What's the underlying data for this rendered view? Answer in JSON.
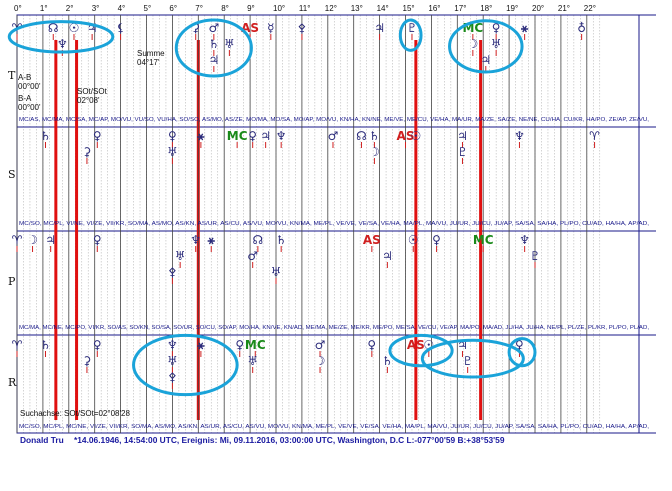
{
  "degree_labels": [
    "0°",
    "1°",
    "2°",
    "3°",
    "4°",
    "5°",
    "6°",
    "7°",
    "8°",
    "9°",
    "10°",
    "11°",
    "12°",
    "13°",
    "14°",
    "15°",
    "16°",
    "17°",
    "18°",
    "19°",
    "20°",
    "21°",
    "22°"
  ],
  "section_labels": [
    "T",
    "S",
    "P",
    "R"
  ],
  "notes": {
    "summe_label": "Summe",
    "summe_value": "04°17'",
    "ab_label": "A-B",
    "ab_value": "00°00'",
    "ba_label": "B-A",
    "ba_value": "00°00'",
    "sot_label": "SOt/SOt",
    "sot_value": "02°08'",
    "suchachse": "Suchachse: SOt/SOt=02°08'28"
  },
  "midpoint_rows": [
    "MC/AS, MC/MA, MC/SA, MC/AP, MO/VU, VU/SO, VU/HA, SO/SO, AS/MO, AS/ZE, MO/MA, MO/SA, MO/AP, MO/VU, KN/HA, KN/NE, ME/VE, ME/CU, VE/HA, MA/UR, MA/ZE, SA/ZE, NE/NE, CU/HA, CU/KR, HA/PO, ZE/AP, ZE/VU,",
    "MC/SO, MC/PL, VI/NE, VI/ZE, VII/KR, SO/MA, AS/MO, AS/KN, AS/UR, AS/CU, AS/VU, MO/VU, KN/MA, ME/PL, VE/VE, VE/SA, VE/HA, MA/PL, MA/VU, JU/UR, JU/CU, JU/AP, SA/SA, SA/HA, PL/PO, CU/AD, HA/HA, AP/AD,",
    "MC/MA, MC/NE, MC/PO, VI/KR, SO/AS, SO/KN, SO/SA, SO/UR, SO/CU, SO/AP, MO/HA, KN/VE, KN/AD, ME/MA, ME/ZE, ME/KR, ME/PO, ME/SA, VE/CU, VE/AP, MA/PO, MA/AD, JU/HA, JU/HA, NE/PL, PL/ZE, PL/KR, PL/PO, PL/AD,",
    "MC/SO, MC/PL, MC/NE, VI/ZE, VII/KR, SO/MA, AS/MO, AS/KN, AS/UR, AS/CU, AS/VU, MO/VU, KN/MA, ME/PL, VE/VE, VE/SA, VE/HA, MA/PL, MA/VU, JU/UR, JU/CU, JU/AP, SA/SA, SA/HA, PL/PO, CU/AD, HA/HA, AP/AD,"
  ],
  "footer": {
    "name": "Donald Tru",
    "text": "*14.06.1946, 14:54:00 UTC, Ereignis: Mi, 09.11.2016, 03:00:00 UTC, Washington, D.C L:-077°00'59 B:+38°53'59"
  },
  "colors": {
    "symbol_default": "#2a2a7a",
    "ascendant": "#d02020",
    "midheaven": "#1a8a1a",
    "search_axis": "#e01010",
    "highlight_circle": "#1aa3d9",
    "frame": "#1a1a8a"
  },
  "symbols": [
    {
      "row": "T",
      "g": "♈",
      "deg": 0.0,
      "lv": 0
    },
    {
      "row": "T",
      "g": "☊",
      "deg": 1.4,
      "lv": 0
    },
    {
      "row": "T",
      "g": "☉",
      "deg": 2.2,
      "lv": 0
    },
    {
      "row": "T",
      "g": "♆",
      "deg": 1.75,
      "lv": 1
    },
    {
      "row": "T",
      "g": "♃",
      "deg": 2.9,
      "lv": 0
    },
    {
      "row": "T",
      "g": "⚸",
      "deg": 4.0,
      "lv": 0
    },
    {
      "row": "T",
      "g": "⚳",
      "deg": 6.9,
      "lv": 0
    },
    {
      "row": "T",
      "g": "♂",
      "deg": 7.6,
      "lv": 0
    },
    {
      "row": "T",
      "g": "♄",
      "deg": 7.6,
      "lv": 1
    },
    {
      "row": "T",
      "g": "♅",
      "deg": 8.2,
      "lv": 1
    },
    {
      "row": "T",
      "g": "♃",
      "deg": 7.6,
      "lv": 2
    },
    {
      "row": "T",
      "g": "AS",
      "deg": 9.0,
      "lv": 0,
      "c": "ascendant"
    },
    {
      "row": "T",
      "g": "☿",
      "deg": 9.8,
      "lv": 0
    },
    {
      "row": "T",
      "g": "⚴",
      "deg": 11.0,
      "lv": 0
    },
    {
      "row": "T",
      "g": "♃",
      "deg": 14.0,
      "lv": 0
    },
    {
      "row": "T",
      "g": "♇",
      "deg": 15.25,
      "lv": 0
    },
    {
      "row": "T",
      "g": "MC",
      "deg": 17.6,
      "lv": 0,
      "c": "midheaven"
    },
    {
      "row": "T",
      "g": "♀",
      "deg": 18.5,
      "lv": 0
    },
    {
      "row": "T",
      "g": "☽",
      "deg": 17.6,
      "lv": 1
    },
    {
      "row": "T",
      "g": "♅",
      "deg": 18.5,
      "lv": 1
    },
    {
      "row": "T",
      "g": "♃",
      "deg": 18.1,
      "lv": 2
    },
    {
      "row": "T",
      "g": "⚹",
      "deg": 19.6,
      "lv": 0
    },
    {
      "row": "T",
      "g": "♁",
      "deg": 21.8,
      "lv": 0
    },
    {
      "row": "S",
      "g": "♄",
      "deg": 1.1,
      "lv": 0
    },
    {
      "row": "S",
      "g": "♀",
      "deg": 3.1,
      "lv": 0
    },
    {
      "row": "S",
      "g": "⚳",
      "deg": 2.7,
      "lv": 1
    },
    {
      "row": "S",
      "g": "♀",
      "deg": 6.0,
      "lv": 0
    },
    {
      "row": "S",
      "g": "♅",
      "deg": 6.0,
      "lv": 1
    },
    {
      "row": "S",
      "g": "⚹",
      "deg": 7.1,
      "lv": 0
    },
    {
      "row": "S",
      "g": "MC",
      "deg": 8.5,
      "lv": 0,
      "c": "midheaven"
    },
    {
      "row": "S",
      "g": "♀",
      "deg": 9.1,
      "lv": 0
    },
    {
      "row": "S",
      "g": "♃",
      "deg": 9.6,
      "lv": 0
    },
    {
      "row": "S",
      "g": "♆",
      "deg": 10.2,
      "lv": 0
    },
    {
      "row": "S",
      "g": "♂",
      "deg": 12.2,
      "lv": 0
    },
    {
      "row": "S",
      "g": "☊",
      "deg": 13.3,
      "lv": 0
    },
    {
      "row": "S",
      "g": "♄",
      "deg": 13.8,
      "lv": 0
    },
    {
      "row": "S",
      "g": "☽",
      "deg": 13.8,
      "lv": 1
    },
    {
      "row": "S",
      "g": "AS",
      "deg": 15.0,
      "lv": 0,
      "c": "ascendant"
    },
    {
      "row": "S",
      "g": "☉",
      "deg": 15.4,
      "lv": 0
    },
    {
      "row": "S",
      "g": "♃",
      "deg": 17.2,
      "lv": 0
    },
    {
      "row": "S",
      "g": "♇",
      "deg": 17.2,
      "lv": 1
    },
    {
      "row": "S",
      "g": "♆",
      "deg": 19.4,
      "lv": 0
    },
    {
      "row": "S",
      "g": "♈",
      "deg": 22.3,
      "lv": 0
    },
    {
      "row": "P",
      "g": "♈",
      "deg": 0.0,
      "lv": 0
    },
    {
      "row": "P",
      "g": "☽",
      "deg": 0.6,
      "lv": 0
    },
    {
      "row": "P",
      "g": "♃",
      "deg": 1.3,
      "lv": 0
    },
    {
      "row": "P",
      "g": "♀",
      "deg": 3.1,
      "lv": 0
    },
    {
      "row": "P",
      "g": "♆",
      "deg": 6.9,
      "lv": 0
    },
    {
      "row": "P",
      "g": "⚹",
      "deg": 7.5,
      "lv": 0
    },
    {
      "row": "P",
      "g": "♅",
      "deg": 6.3,
      "lv": 1
    },
    {
      "row": "P",
      "g": "⚴",
      "deg": 6.0,
      "lv": 2
    },
    {
      "row": "P",
      "g": "☊",
      "deg": 9.3,
      "lv": 0
    },
    {
      "row": "P",
      "g": "♄",
      "deg": 10.2,
      "lv": 0
    },
    {
      "row": "P",
      "g": "♂",
      "deg": 9.1,
      "lv": 1
    },
    {
      "row": "P",
      "g": "♅",
      "deg": 10.0,
      "lv": 2
    },
    {
      "row": "P",
      "g": "AS",
      "deg": 13.7,
      "lv": 0,
      "c": "ascendant"
    },
    {
      "row": "P",
      "g": "♃",
      "deg": 14.3,
      "lv": 1
    },
    {
      "row": "P",
      "g": "☉",
      "deg": 15.3,
      "lv": 0
    },
    {
      "row": "P",
      "g": "♀",
      "deg": 16.2,
      "lv": 0
    },
    {
      "row": "P",
      "g": "MC",
      "deg": 18.0,
      "lv": 0,
      "c": "midheaven"
    },
    {
      "row": "P",
      "g": "♆",
      "deg": 19.6,
      "lv": 0
    },
    {
      "row": "P",
      "g": "♇",
      "deg": 20.0,
      "lv": 1
    },
    {
      "row": "R",
      "g": "♈",
      "deg": 0.0,
      "lv": 0
    },
    {
      "row": "R",
      "g": "♄",
      "deg": 1.1,
      "lv": 0
    },
    {
      "row": "R",
      "g": "♀",
      "deg": 3.1,
      "lv": 0
    },
    {
      "row": "R",
      "g": "⚳",
      "deg": 2.7,
      "lv": 1
    },
    {
      "row": "R",
      "g": "♆",
      "deg": 6.0,
      "lv": 0
    },
    {
      "row": "R",
      "g": "♅",
      "deg": 6.0,
      "lv": 1
    },
    {
      "row": "R",
      "g": "⚴",
      "deg": 6.0,
      "lv": 2
    },
    {
      "row": "R",
      "g": "⚹",
      "deg": 7.1,
      "lv": 0
    },
    {
      "row": "R",
      "g": "♀",
      "deg": 8.6,
      "lv": 0
    },
    {
      "row": "R",
      "g": "MC",
      "deg": 9.2,
      "lv": 0,
      "c": "midheaven"
    },
    {
      "row": "R",
      "g": "♅",
      "deg": 9.1,
      "lv": 1
    },
    {
      "row": "R",
      "g": "♂",
      "deg": 11.7,
      "lv": 0
    },
    {
      "row": "R",
      "g": "☽",
      "deg": 11.7,
      "lv": 1
    },
    {
      "row": "R",
      "g": "♀",
      "deg": 13.7,
      "lv": 0
    },
    {
      "row": "R",
      "g": "♄",
      "deg": 14.3,
      "lv": 1
    },
    {
      "row": "R",
      "g": "AS",
      "deg": 15.4,
      "lv": 0,
      "c": "ascendant"
    },
    {
      "row": "R",
      "g": "☉",
      "deg": 15.9,
      "lv": 0
    },
    {
      "row": "R",
      "g": "♃",
      "deg": 17.2,
      "lv": 0
    },
    {
      "row": "R",
      "g": "♇",
      "deg": 17.4,
      "lv": 1
    },
    {
      "row": "R",
      "g": "♀",
      "deg": 19.4,
      "lv": 0
    }
  ],
  "search_axis_lines": [
    {
      "deg": 1.5,
      "from": "T",
      "to": "R"
    },
    {
      "deg": 2.3,
      "from": "T",
      "to": "R"
    },
    {
      "deg": 7.0,
      "from": "T",
      "to": "R"
    },
    {
      "deg": 15.4,
      "from": "T",
      "to": "R"
    },
    {
      "deg": 17.9,
      "from": "T",
      "to": "R"
    }
  ],
  "highlight_circles": [
    {
      "row": "T",
      "deg": 1.7,
      "lv": 0.3,
      "rx": 2.0,
      "ry": 0.95
    },
    {
      "row": "T",
      "deg": 7.6,
      "lv": 1.0,
      "rx": 1.45,
      "ry": 1.75
    },
    {
      "row": "T",
      "deg": 15.2,
      "lv": 0.2,
      "rx": 0.4,
      "ry": 0.95
    },
    {
      "row": "T",
      "deg": 18.1,
      "lv": 0.9,
      "rx": 1.4,
      "ry": 1.6
    },
    {
      "row": "R",
      "deg": 6.5,
      "lv": 1.0,
      "rx": 2.0,
      "ry": 1.85
    },
    {
      "row": "R",
      "deg": 15.6,
      "lv": 0.1,
      "rx": 1.2,
      "ry": 0.95
    },
    {
      "row": "R",
      "deg": 17.6,
      "lv": 0.6,
      "rx": 1.95,
      "ry": 1.15
    },
    {
      "row": "R",
      "deg": 19.5,
      "lv": 0.2,
      "rx": 0.5,
      "ry": 0.85
    }
  ]
}
